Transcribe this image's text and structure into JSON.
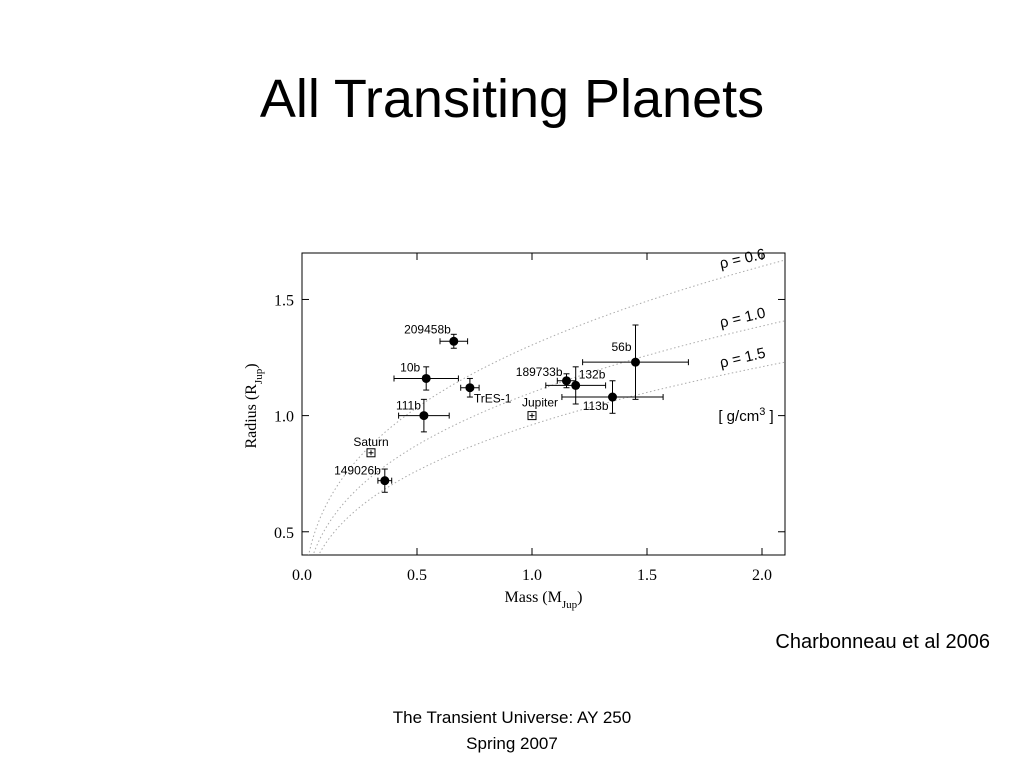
{
  "slide": {
    "title": "All Transiting Planets",
    "credit": "Charbonneau et al 2006",
    "footer": [
      "The Transient Universe:  AY 250",
      "Spring 2007"
    ]
  },
  "chart_data": {
    "type": "scatter",
    "x_label": [
      "Mass (M",
      "Jup",
      ")"
    ],
    "y_label": [
      "Radius (R",
      "Jup",
      ")"
    ],
    "xlim": [
      0,
      2.1
    ],
    "ylim": [
      0.4,
      1.7
    ],
    "xticks": [
      {
        "value": 0,
        "label": "0.0"
      },
      {
        "value": 0.5,
        "label": "0.5"
      },
      {
        "value": 1,
        "label": "1.0"
      },
      {
        "value": 1.5,
        "label": "1.5"
      },
      {
        "value": 2,
        "label": "2.0"
      }
    ],
    "yticks": [
      {
        "value": 0.5,
        "label": "0.5"
      },
      {
        "value": 1,
        "label": "1.0"
      },
      {
        "value": 1.5,
        "label": "1.5"
      }
    ],
    "points": [
      {
        "name": "209458b",
        "x": 0.66,
        "y": 1.32,
        "xerr": 0.06,
        "yerr": 0.03
      },
      {
        "name": "10b",
        "x": 0.54,
        "y": 1.16,
        "xerr": 0.14,
        "yerr": 0.05
      },
      {
        "name": "TrES-1",
        "x": 0.73,
        "y": 1.12,
        "xerr": 0.04,
        "yerr": 0.04
      },
      {
        "name": "111b",
        "x": 0.53,
        "y": 1.0,
        "xerr": 0.11,
        "yerr": 0.07
      },
      {
        "name": "149026b",
        "x": 0.36,
        "y": 0.72,
        "xerr": 0.03,
        "yerr": 0.05
      },
      {
        "name": "189733b",
        "x": 1.15,
        "y": 1.15,
        "xerr": 0.04,
        "yerr": 0.03
      },
      {
        "name": "132b",
        "x": 1.19,
        "y": 1.13,
        "xerr": 0.13,
        "yerr": 0.08
      },
      {
        "name": "56b",
        "x": 1.45,
        "y": 1.23,
        "xerr": 0.23,
        "yerr": 0.16
      },
      {
        "name": "113b",
        "x": 1.35,
        "y": 1.08,
        "xerr": 0.22,
        "yerr": 0.07
      }
    ],
    "references": [
      {
        "name": "Saturn",
        "x": 0.3,
        "y": 0.84
      },
      {
        "name": "Jupiter",
        "x": 1.0,
        "y": 1.0
      }
    ],
    "density_curves": [
      {
        "label": "ρ = 0.6",
        "value": 0.6
      },
      {
        "label": "ρ = 1.0",
        "value": 1.0
      },
      {
        "label": "ρ = 1.5",
        "value": 1.5
      }
    ],
    "density_unit": [
      "[ g/cm",
      "3",
      " ]"
    ]
  }
}
